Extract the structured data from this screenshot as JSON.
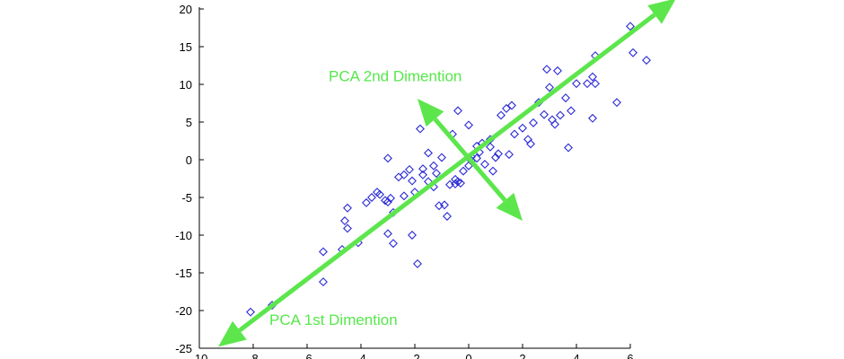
{
  "chart_data": {
    "type": "scatter",
    "title": "",
    "xlabel": "",
    "ylabel": "",
    "xlim": [
      -10,
      6
    ],
    "ylim": [
      -25,
      20
    ],
    "xticks": [
      -10,
      -8,
      -6,
      -4,
      -2,
      0,
      2,
      4,
      6
    ],
    "xtick_labels": [
      "-10",
      "-8",
      "-6",
      "-4",
      "-2",
      "0",
      "2",
      "4",
      "6"
    ],
    "yticks": [
      -25,
      -20,
      -15,
      -10,
      -5,
      0,
      5,
      10,
      15,
      20
    ],
    "ytick_labels": [
      "-25",
      "-20",
      "-15",
      "-10",
      "-5",
      "0",
      "5",
      "10",
      "15",
      "20"
    ],
    "grid": false,
    "marker": "diamond-open",
    "point_color": "#2a2ad6",
    "points": [
      [
        -8.1,
        -20.2
      ],
      [
        -7.3,
        -19.3
      ],
      [
        -5.4,
        -16.2
      ],
      [
        -5.4,
        -12.2
      ],
      [
        -4.7,
        -11.9
      ],
      [
        -4.1,
        -11.0
      ],
      [
        -4.5,
        -9.1
      ],
      [
        -4.6,
        -8.1
      ],
      [
        -4.5,
        -6.4
      ],
      [
        -3.8,
        -5.7
      ],
      [
        -3.3,
        -4.6
      ],
      [
        -3.4,
        -4.3
      ],
      [
        -3.1,
        -5.4
      ],
      [
        -3.0,
        -5.6
      ],
      [
        -2.8,
        -7.0
      ],
      [
        -3.0,
        -9.8
      ],
      [
        -2.8,
        -11.1
      ],
      [
        -2.4,
        -4.8
      ],
      [
        -2.1,
        -2.8
      ],
      [
        -2.2,
        -1.3
      ],
      [
        -2.0,
        -4.3
      ],
      [
        -1.7,
        -1.2
      ],
      [
        -1.7,
        -2.0
      ],
      [
        -1.5,
        -2.9
      ],
      [
        -1.3,
        -0.8
      ],
      [
        -1.3,
        -3.6
      ],
      [
        -1.1,
        -6.1
      ],
      [
        -0.9,
        -6.0
      ],
      [
        -0.8,
        -7.5
      ],
      [
        -0.7,
        -3.3
      ],
      [
        -0.5,
        -2.6
      ],
      [
        -0.5,
        -3.2
      ],
      [
        -0.4,
        -2.9
      ],
      [
        -0.3,
        -3.1
      ],
      [
        -0.2,
        -1.5
      ],
      [
        0.0,
        -0.8
      ],
      [
        0.1,
        -0.1
      ],
      [
        -2.1,
        -10.0
      ],
      [
        -1.9,
        -13.8
      ],
      [
        -3.0,
        0.2
      ],
      [
        -2.6,
        -2.3
      ],
      [
        -2.9,
        -5.1
      ],
      [
        -1.8,
        4.1
      ],
      [
        -1.5,
        0.9
      ],
      [
        -1.0,
        0.3
      ],
      [
        -0.6,
        3.4
      ],
      [
        -0.4,
        6.5
      ],
      [
        0.0,
        4.6
      ],
      [
        0.1,
        0.4
      ],
      [
        0.3,
        1.8
      ],
      [
        0.4,
        1.0
      ],
      [
        0.5,
        2.2
      ],
      [
        0.6,
        -0.6
      ],
      [
        0.8,
        1.7
      ],
      [
        0.8,
        2.7
      ],
      [
        0.9,
        -1.5
      ],
      [
        1.0,
        0.3
      ],
      [
        1.1,
        0.8
      ],
      [
        1.2,
        5.9
      ],
      [
        1.4,
        6.8
      ],
      [
        1.5,
        0.7
      ],
      [
        1.6,
        7.2
      ],
      [
        1.7,
        3.4
      ],
      [
        2.0,
        4.2
      ],
      [
        2.2,
        2.7
      ],
      [
        2.3,
        2.1
      ],
      [
        2.4,
        4.9
      ],
      [
        2.6,
        7.6
      ],
      [
        2.8,
        6.0
      ],
      [
        2.9,
        12.0
      ],
      [
        3.0,
        9.6
      ],
      [
        3.1,
        5.3
      ],
      [
        3.2,
        4.7
      ],
      [
        3.3,
        11.8
      ],
      [
        3.4,
        5.9
      ],
      [
        3.6,
        8.2
      ],
      [
        3.7,
        1.6
      ],
      [
        3.8,
        6.5
      ],
      [
        4.0,
        10.1
      ],
      [
        4.4,
        10.1
      ],
      [
        4.6,
        11.0
      ],
      [
        4.7,
        10.1
      ],
      [
        4.7,
        13.8
      ],
      [
        4.6,
        5.5
      ],
      [
        5.5,
        7.6
      ],
      [
        6.0,
        17.7
      ],
      [
        6.1,
        14.2
      ],
      [
        6.6,
        13.2
      ],
      [
        -2.4,
        -2.0
      ],
      [
        -3.6,
        -5.0
      ],
      [
        -1.2,
        -1.8
      ],
      [
        0.3,
        0.2
      ]
    ],
    "annotations": [
      {
        "text": "PCA 1st Dimention",
        "arrow_color": "#5ce64c",
        "from": [
          -9.3,
          -24.8
        ],
        "to": [
          7.7,
          21.4
        ],
        "double_headed": true,
        "label_anchor": [
          -7.4,
          -21.9
        ]
      },
      {
        "text": "PCA 2nd Dimention",
        "arrow_color": "#5ce64c",
        "from": [
          -1.9,
          8.1
        ],
        "to": [
          2.0,
          -8.1
        ],
        "double_headed": true,
        "label_anchor": [
          -5.2,
          10.4
        ]
      }
    ]
  }
}
